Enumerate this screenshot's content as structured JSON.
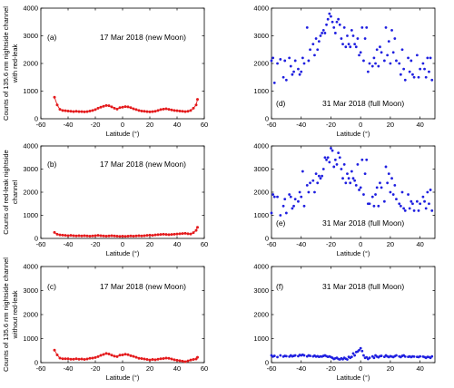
{
  "chart_data": [
    {
      "type": "scatter",
      "panel_label": "(a)",
      "annotation": "17 Mar 2018 (new Moon)",
      "ylabel": [
        "Counts of 135.6 nm nightside channel",
        "with red-leak"
      ],
      "xlabel": "Latitude (°)",
      "xlim": [
        -60,
        60
      ],
      "ylim": [
        0,
        4000
      ],
      "xticks": [
        "-60",
        "-40",
        "-20",
        "0",
        "20",
        "40",
        "60"
      ],
      "yticks": [
        "0",
        "1000",
        "2000",
        "3000",
        "4000"
      ],
      "color": "#e41a1c",
      "connected": true,
      "x": [
        -50,
        -48,
        -46,
        -44,
        -42,
        -40,
        -38,
        -36,
        -34,
        -32,
        -30,
        -28,
        -26,
        -24,
        -22,
        -20,
        -18,
        -16,
        -14,
        -12,
        -10,
        -8,
        -6,
        -4,
        -2,
        0,
        2,
        4,
        6,
        8,
        10,
        12,
        14,
        16,
        18,
        20,
        22,
        24,
        26,
        28,
        30,
        32,
        34,
        36,
        38,
        40,
        42,
        44,
        46,
        48,
        50,
        52,
        54,
        55
      ],
      "y": [
        780,
        500,
        340,
        300,
        290,
        280,
        270,
        260,
        270,
        260,
        260,
        250,
        260,
        280,
        300,
        330,
        380,
        420,
        450,
        480,
        470,
        430,
        380,
        350,
        400,
        420,
        440,
        430,
        400,
        360,
        330,
        300,
        280,
        270,
        260,
        250,
        260,
        270,
        300,
        330,
        350,
        360,
        340,
        320,
        300,
        290,
        280,
        270,
        260,
        270,
        300,
        380,
        500,
        700
      ]
    },
    {
      "type": "scatter",
      "panel_label": "(b)",
      "annotation": "17 Mar 2018 (new Moon)",
      "ylabel": [
        "Counts of red-leak nightside",
        "channel"
      ],
      "xlabel": "Latitude (°)",
      "xlim": [
        -60,
        60
      ],
      "ylim": [
        0,
        4000
      ],
      "xticks": [
        "-60",
        "-40",
        "-20",
        "0",
        "20",
        "40",
        "60"
      ],
      "yticks": [
        "0",
        "1000",
        "2000",
        "3000",
        "4000"
      ],
      "color": "#e41a1c",
      "connected": true,
      "x": [
        -50,
        -48,
        -46,
        -44,
        -42,
        -40,
        -38,
        -36,
        -34,
        -32,
        -30,
        -28,
        -26,
        -24,
        -22,
        -20,
        -18,
        -16,
        -14,
        -12,
        -10,
        -8,
        -6,
        -4,
        -2,
        0,
        2,
        4,
        6,
        8,
        10,
        12,
        14,
        16,
        18,
        20,
        22,
        24,
        26,
        28,
        30,
        32,
        34,
        36,
        38,
        40,
        42,
        44,
        46,
        48,
        50,
        52,
        54,
        55
      ],
      "y": [
        260,
        180,
        150,
        140,
        130,
        120,
        130,
        120,
        110,
        120,
        110,
        120,
        110,
        100,
        110,
        120,
        130,
        120,
        110,
        100,
        110,
        120,
        110,
        100,
        90,
        100,
        90,
        100,
        110,
        100,
        110,
        120,
        110,
        120,
        130,
        140,
        130,
        150,
        160,
        170,
        180,
        170,
        160,
        170,
        180,
        190,
        200,
        210,
        220,
        200,
        190,
        250,
        350,
        480
      ]
    },
    {
      "type": "scatter",
      "panel_label": "(c)",
      "annotation": "17 Mar 2018 (new Moon)",
      "ylabel": [
        "Counts of 135.6 nm nightside channel",
        "without red-leak"
      ],
      "xlabel": "Latitude (°)",
      "xlim": [
        -60,
        60
      ],
      "ylim": [
        0,
        4000
      ],
      "xticks": [
        "-60",
        "-40",
        "-20",
        "0",
        "20",
        "40",
        "60"
      ],
      "yticks": [
        "0",
        "1000",
        "2000",
        "3000",
        "4000"
      ],
      "color": "#e41a1c",
      "connected": true,
      "x": [
        -50,
        -48,
        -46,
        -44,
        -42,
        -40,
        -38,
        -36,
        -34,
        -32,
        -30,
        -28,
        -26,
        -24,
        -22,
        -20,
        -18,
        -16,
        -14,
        -12,
        -10,
        -8,
        -6,
        -4,
        -2,
        0,
        2,
        4,
        6,
        8,
        10,
        12,
        14,
        16,
        18,
        20,
        22,
        24,
        26,
        28,
        30,
        32,
        34,
        36,
        38,
        40,
        42,
        44,
        46,
        48,
        50,
        52,
        54,
        55
      ],
      "y": [
        520,
        320,
        190,
        160,
        160,
        160,
        140,
        140,
        160,
        140,
        150,
        130,
        150,
        180,
        190,
        210,
        250,
        300,
        340,
        380,
        360,
        310,
        270,
        250,
        310,
        320,
        350,
        330,
        290,
        260,
        220,
        180,
        170,
        150,
        130,
        110,
        130,
        120,
        140,
        160,
        170,
        190,
        180,
        150,
        120,
        100,
        80,
        60,
        40,
        70,
        110,
        130,
        150,
        220
      ]
    },
    {
      "type": "scatter",
      "panel_label": "(d)",
      "annotation": "31 Mar 2018 (full Moon)",
      "ylabel": [],
      "xlabel": "Latitude (°)",
      "xlim": [
        -60,
        50
      ],
      "ylim": [
        0,
        4000
      ],
      "xticks": [
        "-60",
        "-40",
        "-20",
        "0",
        "20",
        "40"
      ],
      "yticks": [
        "0",
        "1000",
        "2000",
        "3000",
        "4000"
      ],
      "color": "#1f1fe0",
      "connected": false,
      "x": [
        -60,
        -59,
        -58,
        -56,
        -54,
        -52,
        -51,
        -50,
        -48,
        -47,
        -46,
        -45,
        -44,
        -42,
        -41,
        -40,
        -39,
        -38,
        -36,
        -35,
        -34,
        -32,
        -31,
        -30,
        -29,
        -28,
        -27,
        -26,
        -25,
        -24,
        -23,
        -22,
        -21,
        -20,
        -19,
        -18,
        -17,
        -16,
        -15,
        -14,
        -13,
        -12,
        -11,
        -10,
        -9,
        -8,
        -7,
        -6,
        -5,
        -4,
        -3,
        -2,
        -1,
        0,
        1,
        2,
        3,
        4,
        5,
        6,
        8,
        9,
        10,
        11,
        12,
        13,
        14,
        16,
        17,
        18,
        19,
        20,
        21,
        22,
        23,
        24,
        26,
        27,
        28,
        29,
        30,
        32,
        33,
        34,
        35,
        36,
        38,
        39,
        40,
        42,
        43,
        44,
        45,
        46,
        47,
        48
      ],
      "y": [
        2100,
        2200,
        1300,
        2000,
        2150,
        1500,
        2100,
        1400,
        2200,
        1900,
        1600,
        1700,
        2100,
        1800,
        1600,
        1700,
        2200,
        2000,
        3300,
        2100,
        2500,
        2700,
        2300,
        2900,
        2500,
        2800,
        3000,
        3100,
        3200,
        3100,
        3400,
        3600,
        3800,
        3700,
        3500,
        3300,
        3100,
        3500,
        3600,
        3400,
        2900,
        2700,
        3300,
        2600,
        3000,
        2700,
        2600,
        3200,
        3000,
        2700,
        2600,
        2900,
        2300,
        2400,
        3300,
        2100,
        2900,
        3300,
        1700,
        2000,
        1900,
        2200,
        2000,
        2500,
        1900,
        2600,
        2400,
        2100,
        3300,
        2300,
        2800,
        2000,
        3200,
        2400,
        2900,
        2100,
        2000,
        1600,
        2500,
        1800,
        1400,
        2200,
        1700,
        2100,
        1600,
        1500,
        2300,
        1500,
        1800,
        2000,
        1800,
        1500,
        2200,
        1700,
        2200,
        1400
      ]
    },
    {
      "type": "scatter",
      "panel_label": "(e)",
      "annotation": "31 Mar 2018 (full Moon)",
      "ylabel": [],
      "xlabel": "Latitude (°)",
      "xlim": [
        -60,
        50
      ],
      "ylim": [
        0,
        4000
      ],
      "xticks": [
        "-60",
        "-40",
        "-20",
        "0",
        "20",
        "40"
      ],
      "yticks": [
        "0",
        "1000",
        "2000",
        "3000",
        "4000"
      ],
      "color": "#1f1fe0",
      "connected": false,
      "x": [
        -60,
        -59,
        -58,
        -56,
        -54,
        -52,
        -51,
        -50,
        -48,
        -47,
        -46,
        -45,
        -44,
        -42,
        -41,
        -40,
        -39,
        -38,
        -36,
        -35,
        -34,
        -32,
        -31,
        -30,
        -29,
        -28,
        -27,
        -26,
        -25,
        -24,
        -23,
        -22,
        -21,
        -20,
        -19,
        -18,
        -17,
        -16,
        -15,
        -14,
        -13,
        -12,
        -11,
        -10,
        -9,
        -8,
        -7,
        -6,
        -5,
        -4,
        -3,
        -2,
        -1,
        0,
        1,
        2,
        3,
        4,
        5,
        6,
        8,
        9,
        10,
        11,
        12,
        13,
        14,
        16,
        17,
        18,
        19,
        20,
        21,
        22,
        23,
        24,
        26,
        27,
        28,
        29,
        30,
        32,
        33,
        34,
        35,
        36,
        38,
        39,
        40,
        42,
        43,
        44,
        45,
        46,
        47,
        48
      ],
      "y": [
        1100,
        1900,
        1800,
        1800,
        1000,
        1400,
        1700,
        1100,
        1900,
        1800,
        1300,
        1400,
        1700,
        1600,
        2000,
        1800,
        2900,
        1400,
        2300,
        2000,
        2400,
        2500,
        2000,
        2800,
        2400,
        2700,
        2600,
        2700,
        3000,
        3500,
        3400,
        3500,
        3300,
        3900,
        3800,
        3100,
        3400,
        3200,
        3700,
        3500,
        3000,
        2600,
        3200,
        2400,
        2800,
        2600,
        2400,
        2900,
        2600,
        2500,
        2300,
        3200,
        2100,
        2200,
        3400,
        1900,
        2800,
        3400,
        1500,
        1500,
        1800,
        1400,
        1900,
        2200,
        1400,
        2400,
        2200,
        1600,
        3100,
        2400,
        2800,
        2000,
        2600,
        1900,
        2300,
        1700,
        1500,
        1400,
        2000,
        1300,
        1200,
        1900,
        1300,
        1600,
        1500,
        1200,
        1600,
        1200,
        1500,
        1800,
        1600,
        1300,
        2000,
        1500,
        2100,
        1200
      ]
    },
    {
      "type": "scatter",
      "panel_label": "(f)",
      "annotation": "31 Mar 2018 (full Moon)",
      "ylabel": [],
      "xlabel": "Latitude (°)",
      "xlim": [
        -60,
        50
      ],
      "ylim": [
        0,
        4000
      ],
      "xticks": [
        "-60",
        "-40",
        "-20",
        "0",
        "20",
        "40"
      ],
      "yticks": [
        "0",
        "1000",
        "2000",
        "3000",
        "4000"
      ],
      "color": "#1f1fe0",
      "connected": false,
      "x": [
        -60,
        -59,
        -58,
        -56,
        -54,
        -52,
        -51,
        -50,
        -48,
        -47,
        -46,
        -45,
        -44,
        -42,
        -41,
        -40,
        -39,
        -38,
        -36,
        -35,
        -34,
        -32,
        -31,
        -30,
        -29,
        -28,
        -27,
        -26,
        -25,
        -24,
        -23,
        -22,
        -21,
        -20,
        -19,
        -18,
        -17,
        -16,
        -15,
        -14,
        -13,
        -12,
        -11,
        -10,
        -9,
        -8,
        -7,
        -6,
        -5,
        -4,
        -3,
        -2,
        -1,
        0,
        1,
        2,
        3,
        4,
        5,
        6,
        8,
        9,
        10,
        11,
        12,
        13,
        14,
        16,
        17,
        18,
        19,
        20,
        21,
        22,
        23,
        24,
        26,
        27,
        28,
        29,
        30,
        32,
        33,
        34,
        35,
        36,
        38,
        39,
        40,
        42,
        43,
        44,
        45,
        46,
        47,
        48
      ],
      "y": [
        300,
        250,
        280,
        230,
        300,
        250,
        280,
        270,
        250,
        300,
        260,
        280,
        300,
        270,
        320,
        300,
        330,
        300,
        260,
        300,
        280,
        260,
        290,
        250,
        270,
        240,
        260,
        250,
        280,
        300,
        270,
        240,
        260,
        230,
        200,
        150,
        180,
        200,
        150,
        130,
        180,
        140,
        200,
        160,
        130,
        240,
        200,
        240,
        380,
        300,
        440,
        460,
        520,
        600,
        480,
        300,
        200,
        220,
        150,
        200,
        260,
        200,
        300,
        250,
        220,
        270,
        280,
        240,
        300,
        260,
        230,
        270,
        250,
        230,
        270,
        300,
        260,
        230,
        280,
        300,
        250,
        240,
        260,
        230,
        260,
        250,
        240,
        230,
        260,
        250,
        230,
        200,
        240,
        230,
        200,
        260
      ]
    }
  ]
}
